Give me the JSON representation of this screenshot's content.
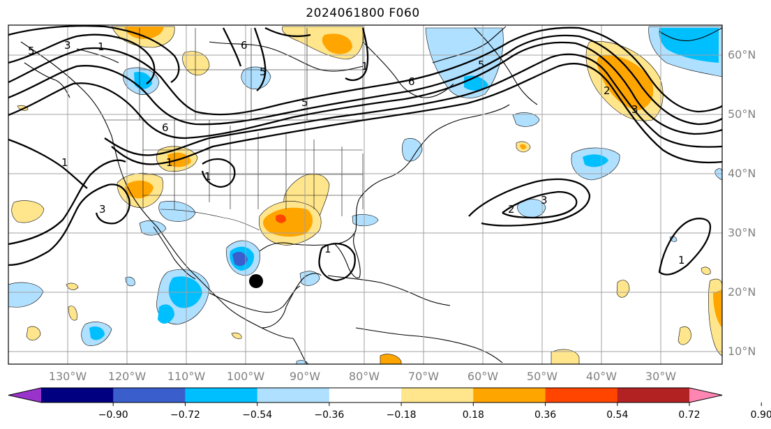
{
  "title": "2024061800 F060",
  "latitude_labels": [
    "60°N",
    "50°N",
    "40°N",
    "30°N",
    "20°N",
    "10°N"
  ],
  "longitude_labels": [
    "130°W",
    "120°W",
    "110°W",
    "100°W",
    "90°W",
    "80°W",
    "70°W",
    "60°W",
    "50°W",
    "40°W",
    "30°W"
  ],
  "colorbar": {
    "colors": [
      "#9933cc",
      "#000080",
      "#3a5fcd",
      "#00bfff",
      "#b0e0ff",
      "#ffffff",
      "#ffe68c",
      "#ffa500",
      "#ff4500",
      "#b22222",
      "#ff85b3"
    ],
    "tick_labels": [
      "−0.90",
      "−0.72",
      "−0.54",
      "−0.36",
      "−0.18",
      "0.18",
      "0.36",
      "0.54",
      "0.72",
      "0.90"
    ]
  },
  "contour_labels": [
    "5",
    "3",
    "1",
    "6",
    "5",
    "5",
    "6",
    "6",
    "5",
    "1",
    "1",
    "3",
    "1",
    "2",
    "3",
    "2",
    "1",
    "1",
    "3",
    "1"
  ],
  "marker": {
    "name": "storm-position-marker"
  }
}
